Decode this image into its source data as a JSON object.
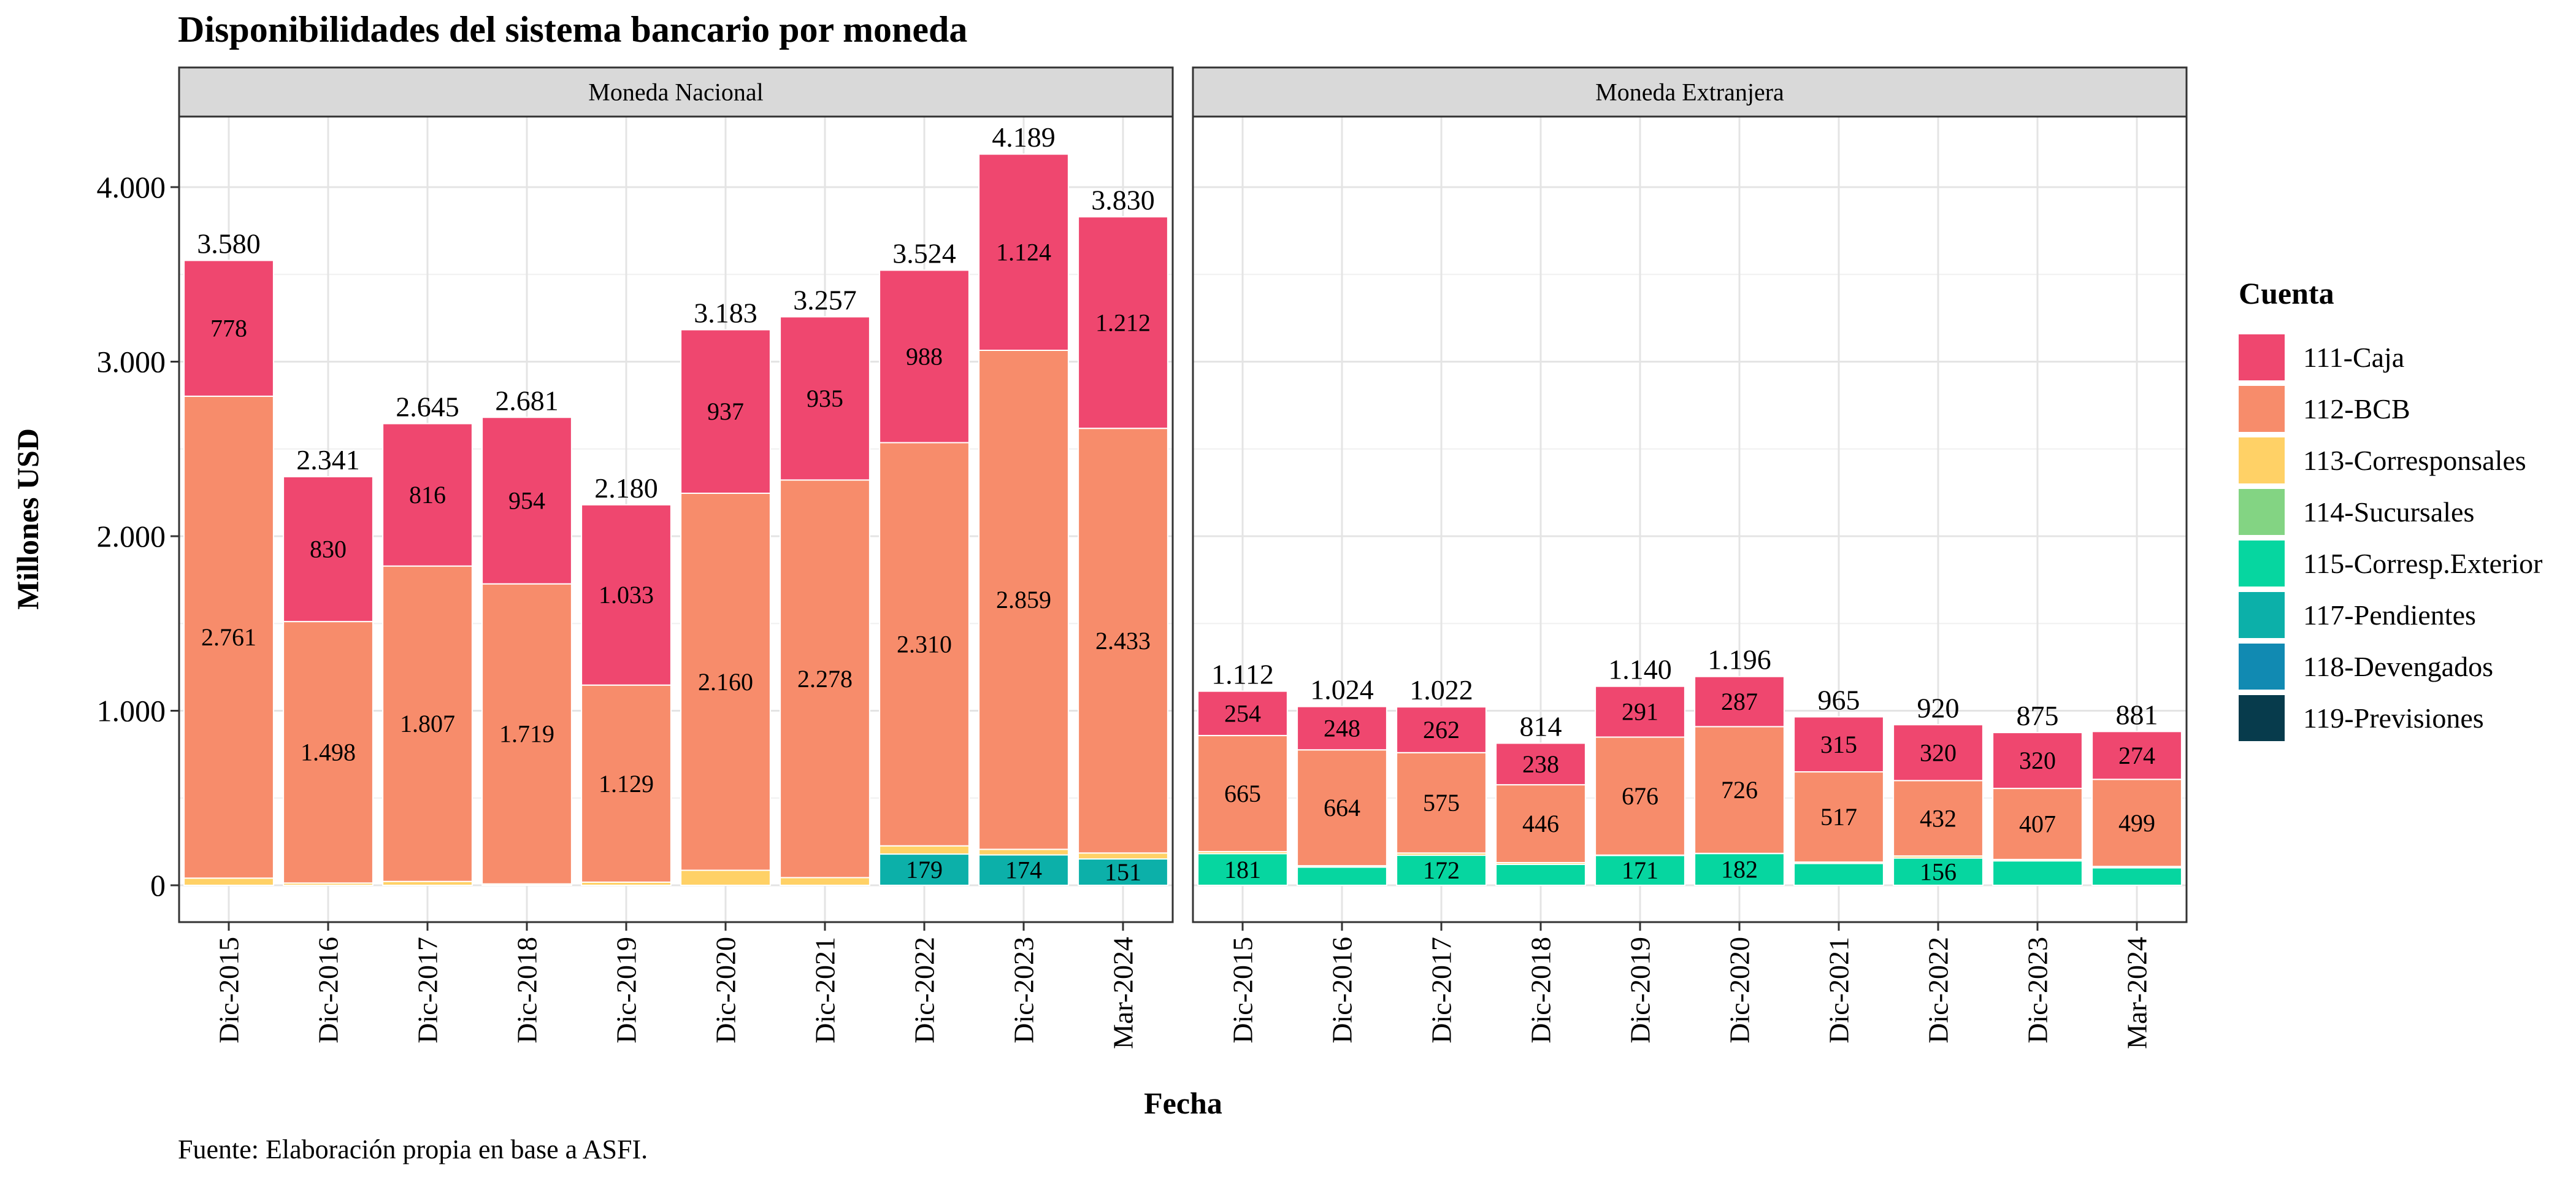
{
  "title": "Disponibilidades del sistema bancario por moneda",
  "source": "Fuente: Elaboración propia en base a ASFI.",
  "chart_data": {
    "type": "bar",
    "stacked": true,
    "xlabel": "Fecha",
    "ylabel": "Millones USD",
    "ylim": [
      0,
      4500
    ],
    "y_ticks": [
      0,
      1000,
      2000,
      3000,
      4000
    ],
    "y_tick_labels": [
      "0",
      "1.000",
      "2.000",
      "3.000",
      "4.000"
    ],
    "grid": true,
    "legend_position": "right",
    "categories": [
      "Dic-2015",
      "Dic-2016",
      "Dic-2017",
      "Dic-2018",
      "Dic-2019",
      "Dic-2020",
      "Dic-2021",
      "Dic-2022",
      "Dic-2023",
      "Mar-2024"
    ],
    "legend": {
      "title": "Cuenta",
      "items": [
        {
          "label": "111-Caja",
          "color": "#ef476f"
        },
        {
          "label": "112-BCB",
          "color": "#f78c6b"
        },
        {
          "label": "113-Corresponsales",
          "color": "#ffd166"
        },
        {
          "label": "114-Sucursales",
          "color": "#83d483"
        },
        {
          "label": "115-Corresp.Exterior",
          "color": "#06d6a0"
        },
        {
          "label": "117-Pendientes",
          "color": "#0cb0a9"
        },
        {
          "label": "118-Devengados",
          "color": "#118ab2"
        },
        {
          "label": "119-Previsiones",
          "color": "#073b4c"
        }
      ]
    },
    "panels": [
      {
        "strip": "Moneda Nacional",
        "totals": [
          3580,
          2341,
          2645,
          2681,
          2180,
          3183,
          3257,
          3524,
          4189,
          3830
        ],
        "total_labels": [
          "3.580",
          "2.341",
          "2.645",
          "2.681",
          "2.180",
          "3.183",
          "3.257",
          "3.524",
          "4.189",
          "3.830"
        ],
        "segments": [
          {
            "account": "117-Pendientes",
            "color": "#0cb0a9",
            "values": [
              0,
              0,
              0,
              0,
              0,
              0,
              0,
              179,
              174,
              151
            ],
            "labels": [
              "",
              "",
              "",
              "",
              "",
              "",
              "",
              "179",
              "174",
              "151"
            ]
          },
          {
            "account": "113-Corresponsales",
            "color": "#ffd166",
            "values": [
              41,
              13,
              22,
              8,
              18,
              86,
              44,
              47,
              32,
              34
            ],
            "labels": [
              "",
              "",
              "",
              "",
              "",
              "",
              "",
              "",
              "",
              ""
            ]
          },
          {
            "account": "112-BCB",
            "color": "#f78c6b",
            "values": [
              2761,
              1498,
              1807,
              1719,
              1129,
              2160,
              2278,
              2310,
              2859,
              2433
            ],
            "labels": [
              "2.761",
              "1.498",
              "1.807",
              "1.719",
              "1.129",
              "2.160",
              "2.278",
              "2.310",
              "2.859",
              "2.433"
            ]
          },
          {
            "account": "111-Caja",
            "color": "#ef476f",
            "values": [
              778,
              830,
              816,
              954,
              1033,
              937,
              935,
              988,
              1124,
              1212
            ],
            "labels": [
              "778",
              "830",
              "816",
              "954",
              "1.033",
              "937",
              "935",
              "988",
              "1.124",
              "1.212"
            ]
          }
        ]
      },
      {
        "strip": "Moneda Extranjera",
        "totals": [
          1112,
          1024,
          1022,
          814,
          1140,
          1196,
          965,
          920,
          875,
          881
        ],
        "total_labels": [
          "1.112",
          "1.024",
          "1.022",
          "814",
          "1.140",
          "1.196",
          "965",
          "920",
          "875",
          "881"
        ],
        "segments": [
          {
            "account": "115-Corresp.Exterior",
            "color": "#06d6a0",
            "values": [
              181,
              104,
              172,
              120,
              171,
              182,
              125,
              156,
              140,
              100
            ],
            "labels": [
              "181",
              "",
              "172",
              "",
              "171",
              "182",
              "",
              "156",
              "",
              ""
            ]
          },
          {
            "account": "113-Corresponsales",
            "color": "#ffd166",
            "values": [
              12,
              8,
              13,
              10,
              2,
              1,
              8,
              12,
              8,
              8
            ],
            "labels": [
              "",
              "",
              "",
              "",
              "",
              "",
              "",
              "",
              "",
              ""
            ]
          },
          {
            "account": "112-BCB",
            "color": "#f78c6b",
            "values": [
              665,
              664,
              575,
              446,
              676,
              726,
              517,
              432,
              407,
              499
            ],
            "labels": [
              "665",
              "664",
              "575",
              "446",
              "676",
              "726",
              "517",
              "432",
              "407",
              "499"
            ]
          },
          {
            "account": "111-Caja",
            "color": "#ef476f",
            "values": [
              254,
              248,
              262,
              238,
              291,
              287,
              315,
              320,
              320,
              274
            ],
            "labels": [
              "254",
              "248",
              "262",
              "238",
              "291",
              "287",
              "315",
              "320",
              "320",
              "274"
            ]
          }
        ]
      }
    ]
  }
}
